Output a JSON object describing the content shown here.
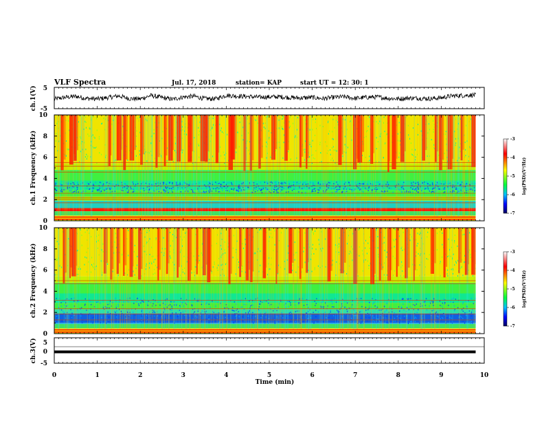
{
  "header": {
    "title": "VLF Spectra",
    "date": "Jul. 17, 2018",
    "station": "station= KAP",
    "start_ut": "start  UT =   12: 30: 1"
  },
  "chart_data": {
    "type": "heatmap",
    "title": "VLF Spectra",
    "xlabel": "Time  (min)",
    "xlim": [
      0,
      10
    ],
    "x_ticks": [
      "0",
      "1",
      "2",
      "3",
      "4",
      "5",
      "6",
      "7",
      "8",
      "9",
      "10"
    ],
    "panels": [
      {
        "id": "ch1-waveform",
        "type": "line",
        "ylabel": "ch.1(V)",
        "ylim": [
          -5,
          5
        ],
        "y_ticks": [
          "5",
          "-5"
        ],
        "series": [
          {
            "x": [
              0,
              0.25,
              0.5,
              0.75,
              1,
              1.25,
              1.5,
              1.75,
              2,
              2.25,
              2.5,
              2.75,
              3,
              3.25,
              3.5,
              3.75,
              4,
              4.25,
              4.5,
              4.75,
              5,
              5.25,
              5.5,
              5.75,
              6,
              6.25,
              6.5,
              6.75,
              7,
              7.25,
              7.5,
              7.75,
              8,
              8.25,
              8.5,
              8.75,
              9,
              9.25,
              9.5,
              9.75,
              9.8
            ],
            "values": [
              -0.5,
              0.3,
              0.8,
              -0.2,
              -0.4,
              0.2,
              1.0,
              -0.3,
              -0.4,
              1.2,
              0.2,
              -0.6,
              0.5,
              0.8,
              -0.3,
              -0.4,
              1.3,
              0.9,
              0.7,
              0.4,
              0.5,
              0.6,
              0.2,
              0.0,
              0.3,
              -0.3,
              0.3,
              0.6,
              -0.2,
              0.3,
              0.5,
              -0.1,
              -0.4,
              0.0,
              -0.1,
              -0.3,
              0.1,
              1.0,
              1.2,
              1.4,
              1.3
            ]
          }
        ]
      },
      {
        "id": "ch1-spectrogram",
        "type": "heatmap",
        "ylabel": "ch.1 Frequency (kHz)",
        "ylim": [
          0,
          10
        ],
        "y_ticks": [
          "0",
          "2",
          "4",
          "6",
          "8",
          "10"
        ],
        "colorbar": {
          "label": "log(PSD)(V²/Hz)",
          "range": [
            -7,
            -3
          ],
          "ticks": [
            "-3",
            "-4",
            "-5",
            "-6",
            "-7"
          ]
        },
        "lines_khz": [
          0.15,
          0.35,
          1.0,
          1.7,
          2.05,
          2.2,
          2.6,
          3.3,
          4.6,
          5.15,
          5.5
        ],
        "red_burst_min": [
          0.15,
          0.35,
          0.45,
          1.25,
          1.45,
          1.6,
          1.75,
          2.0,
          2.35,
          2.55,
          2.65,
          2.85,
          3.1,
          3.4,
          3.5,
          3.75,
          4.05,
          4.1,
          4.4,
          4.55,
          4.75,
          5.05,
          5.35,
          5.7,
          5.85,
          6.6,
          6.95,
          7.05,
          7.35,
          7.75,
          7.85,
          8.05,
          8.55,
          8.85,
          8.95,
          9.15,
          9.45,
          9.7
        ]
      },
      {
        "id": "ch2-spectrogram",
        "type": "heatmap",
        "ylabel": "ch.2 Frequency (kHz)",
        "ylim": [
          0,
          10
        ],
        "y_ticks": [
          "0",
          "2",
          "4",
          "6",
          "8",
          "10"
        ],
        "colorbar": {
          "label": "log(PSD)(V²/Hz)",
          "range": [
            -7,
            -3
          ],
          "ticks": [
            "-3",
            "-4",
            "-5",
            "-6",
            "-7"
          ]
        },
        "lines_khz": [
          0.15,
          0.35,
          1.3,
          1.85,
          2.35,
          3.15,
          4.7,
          5.0
        ],
        "red_burst_min": [
          0.2,
          0.35,
          0.4,
          1.15,
          1.3,
          1.45,
          1.6,
          1.75,
          1.95,
          2.4,
          2.6,
          2.85,
          3.1,
          3.3,
          3.45,
          3.55,
          4.05,
          4.3,
          4.45,
          4.55,
          4.85,
          5.15,
          5.45,
          5.7,
          5.85,
          6.35,
          6.65,
          6.95,
          7.35,
          7.55,
          7.75,
          7.95,
          8.15,
          8.35,
          8.75,
          9.05,
          9.4,
          9.55,
          9.7
        ]
      },
      {
        "id": "ch3-waveform",
        "type": "line",
        "ylabel": "ch.3(V)",
        "ylim": [
          -5,
          5
        ],
        "y_ticks": [
          "5",
          "0",
          "-5"
        ],
        "series": [
          {
            "x": [
              0,
              9.8
            ],
            "values": [
              0,
              0
            ]
          }
        ]
      }
    ]
  }
}
